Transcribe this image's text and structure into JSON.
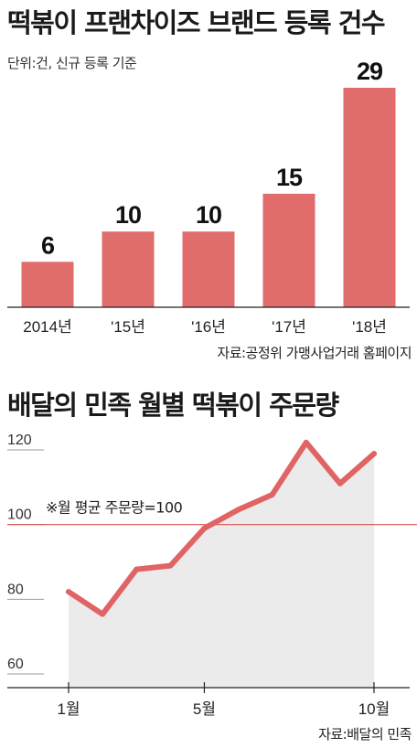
{
  "charts": {
    "bar_title": "떡볶이 프랜차이즈 브랜드 등록 건수",
    "bar_subtitle": "단위:건, 신규 등록 기준",
    "bar_source": "자료:공정위 가맹사업거래 홈페이지",
    "line_title": "배달의 민족 월별 떡볶이 주문량",
    "line_source": "자료:배달의 민족",
    "reference_label": "※월 평균 주문량=100"
  },
  "colors": {
    "bar": "#e06c6c",
    "line": "#e06464",
    "area": "#ebebeb",
    "reference_line": "#d9534f"
  },
  "chart_data": [
    {
      "type": "bar",
      "title": "떡볶이 프랜차이즈 브랜드 등록 건수",
      "subtitle": "단위:건, 신규 등록 기준",
      "categories": [
        "2014년",
        "'15년",
        "'16년",
        "'17년",
        "'18년"
      ],
      "values": [
        6,
        10,
        10,
        15,
        29
      ],
      "ylim": [
        0,
        29
      ],
      "grid": false,
      "source": "자료:공정위 가맹사업거래 홈페이지"
    },
    {
      "type": "area",
      "title": "배달의 민족 월별 떡볶이 주문량",
      "x": [
        1,
        2,
        3,
        4,
        5,
        6,
        7,
        8,
        9,
        10
      ],
      "values": [
        82,
        76,
        88,
        89,
        99,
        104,
        108,
        122,
        111,
        119
      ],
      "x_tick_labels": [
        {
          "x": 1,
          "label": "1월"
        },
        {
          "x": 5,
          "label": "5월"
        },
        {
          "x": 10,
          "label": "10월"
        }
      ],
      "y_ticks": [
        60,
        80,
        100,
        120
      ],
      "ylim": [
        55,
        125
      ],
      "reference_line": {
        "y": 100,
        "label": "※월 평균 주문량=100"
      },
      "source": "자료:배달의 민족"
    }
  ]
}
